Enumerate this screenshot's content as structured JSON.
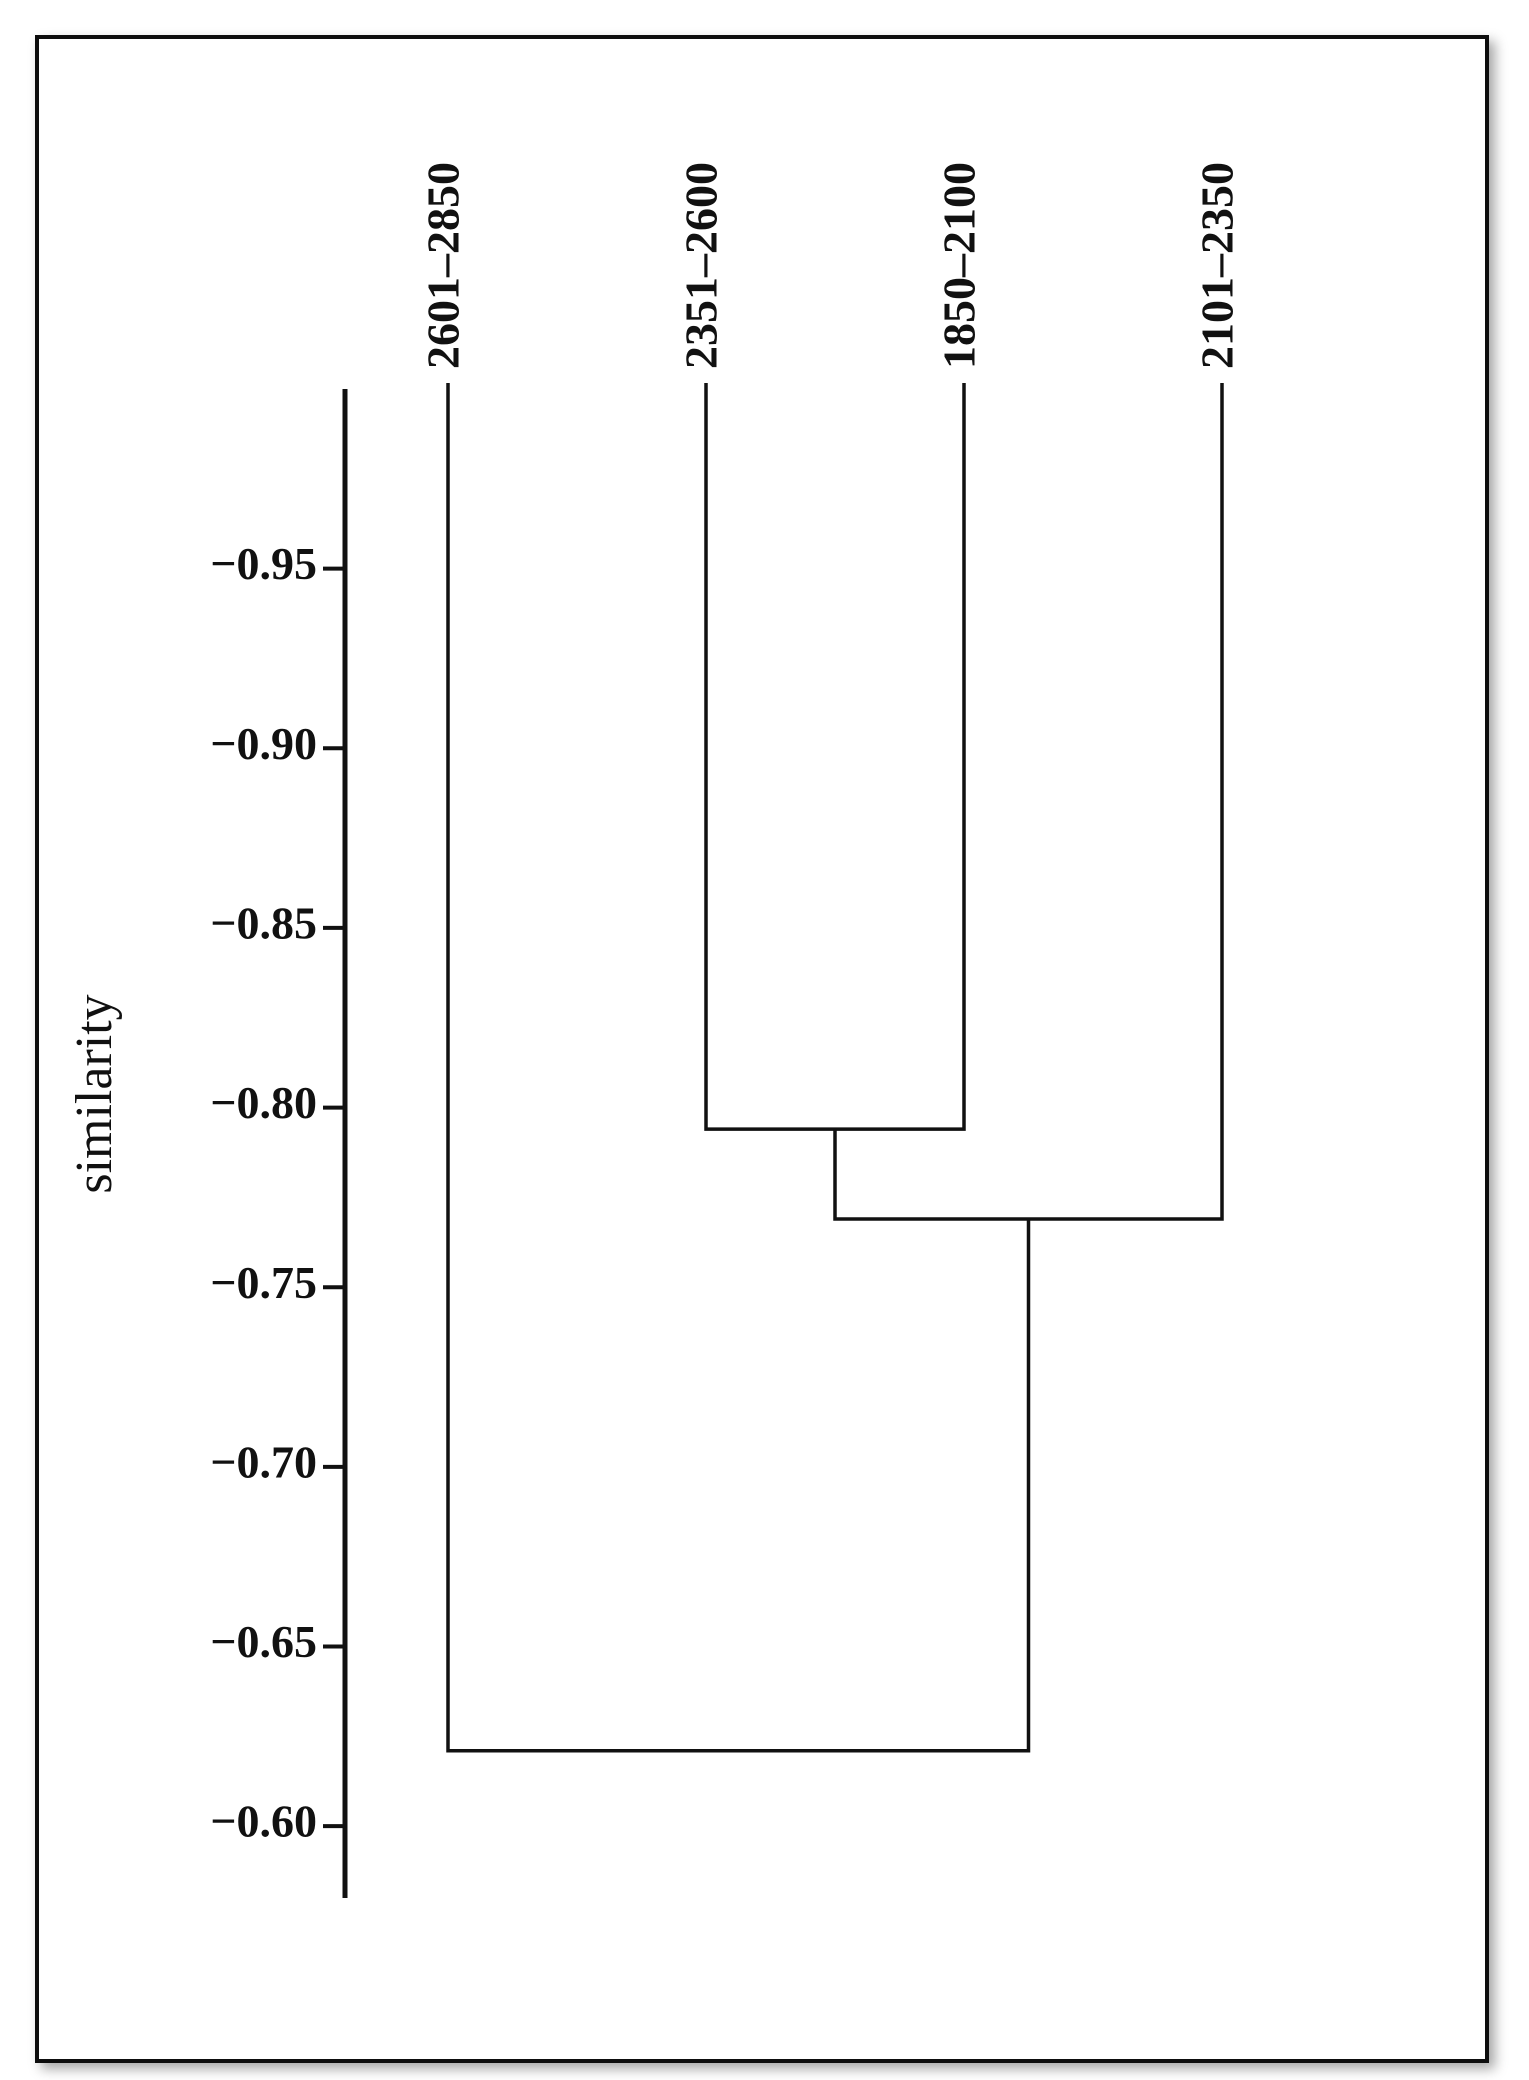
{
  "chart_data": {
    "type": "dendrogram",
    "ylabel": "similarity",
    "categories": [
      "2601–2850",
      "2351–2600",
      "1850–2100",
      "2101–2350"
    ],
    "merges": [
      {
        "children": [
          1,
          2
        ],
        "height": -0.794
      },
      {
        "children": [
          4,
          3
        ],
        "height": -0.769
      },
      {
        "children": [
          0,
          5
        ],
        "height": -0.621
      }
    ],
    "ylim": [
      -1.0,
      -0.58
    ],
    "yticks": [
      {
        "value": -0.95,
        "label": "−0.95"
      },
      {
        "value": -0.9,
        "label": "−0.90"
      },
      {
        "value": -0.85,
        "label": "−0.85"
      },
      {
        "value": -0.8,
        "label": "−0.80"
      },
      {
        "value": -0.75,
        "label": "−0.75"
      },
      {
        "value": -0.7,
        "label": "−0.70"
      },
      {
        "value": -0.65,
        "label": "−0.65"
      },
      {
        "value": -0.6,
        "label": "−0.60"
      }
    ],
    "color": "#111111"
  }
}
